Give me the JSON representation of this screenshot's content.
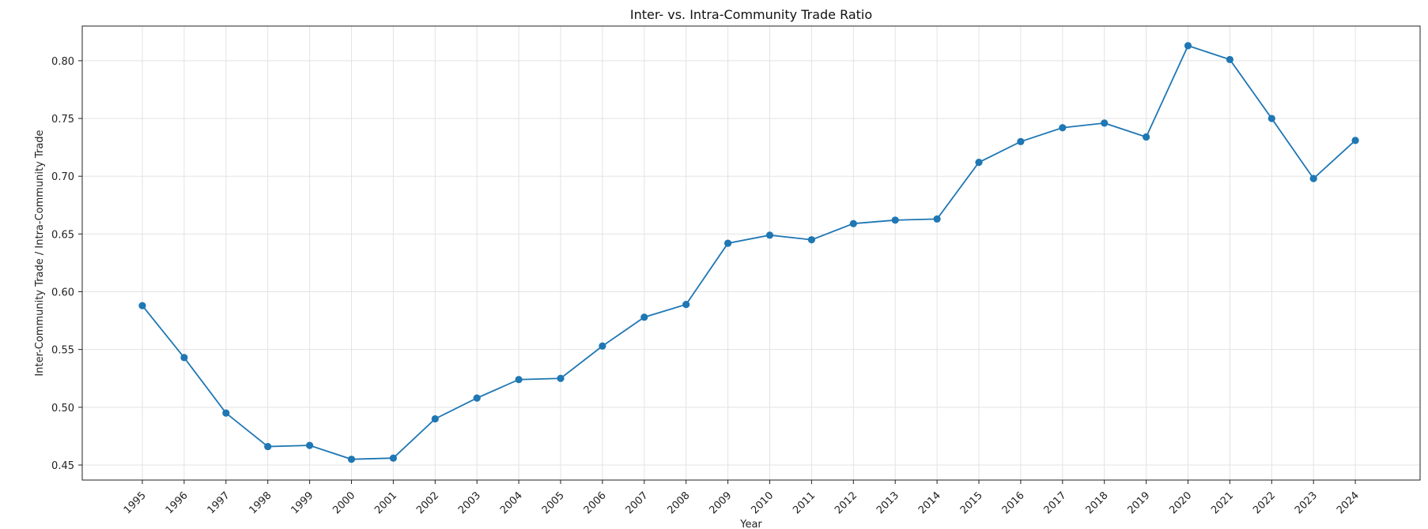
{
  "chart_data": {
    "type": "line",
    "title": "Inter- vs. Intra-Community Trade Ratio",
    "xlabel": "Year",
    "ylabel": "Inter-Community Trade / Intra-Community Trade",
    "ylim": [
      0.437,
      0.83
    ],
    "yticks": [
      "0.45",
      "0.50",
      "0.55",
      "0.60",
      "0.65",
      "0.70",
      "0.75",
      "0.80"
    ],
    "grid": true,
    "line_color": "#1f77b4",
    "x": [
      "1995",
      "1996",
      "1997",
      "1998",
      "1999",
      "2000",
      "2001",
      "2002",
      "2003",
      "2004",
      "2005",
      "2006",
      "2007",
      "2008",
      "2009",
      "2010",
      "2011",
      "2012",
      "2013",
      "2014",
      "2015",
      "2016",
      "2017",
      "2018",
      "2019",
      "2020",
      "2021",
      "2022",
      "2023",
      "2024"
    ],
    "series": [
      {
        "values": [
          0.588,
          0.543,
          0.495,
          0.466,
          0.467,
          0.455,
          0.456,
          0.49,
          0.508,
          0.524,
          0.525,
          0.553,
          0.578,
          0.589,
          0.642,
          0.649,
          0.645,
          0.659,
          0.662,
          0.663,
          0.712,
          0.73,
          0.742,
          0.746,
          0.734,
          0.813,
          0.801,
          0.75,
          0.698,
          0.731
        ]
      }
    ]
  }
}
